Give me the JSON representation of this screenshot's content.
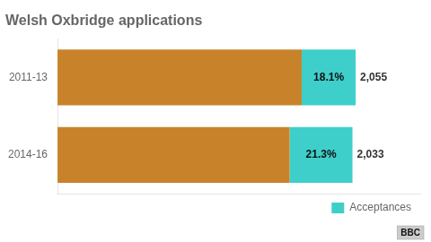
{
  "chart_data": {
    "type": "bar",
    "title": "Welsh Oxbridge applications",
    "orientation": "horizontal",
    "stacked": true,
    "categories": [
      "2014-16",
      "2011-13"
    ],
    "series": [
      {
        "color": "#c8832a",
        "values": [
          1599.971,
          1683.045
        ]
      },
      {
        "name": "Acceptances",
        "color": "#3ecfca",
        "values": [
          433.029,
          371.955
        ],
        "shares": [
          21.3,
          18.1
        ],
        "share_labels": [
          "21.3%",
          "18.1%"
        ]
      }
    ],
    "totals": [
      2033,
      2055
    ],
    "total_labels": [
      "2,033",
      "2,055"
    ],
    "xlim": [
      0,
      2500
    ],
    "tick_labels": "y",
    "grid": false,
    "legend": "lower right",
    "annotations": [
      "BBC"
    ]
  }
}
